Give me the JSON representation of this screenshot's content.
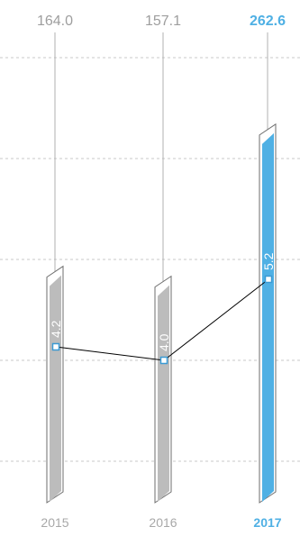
{
  "chart_data": {
    "type": "bar",
    "categories": [
      "2015",
      "2016",
      "2017"
    ],
    "highlight": "2017",
    "series": [
      {
        "values": [
          164.0,
          157.1,
          262.6
        ],
        "labels": [
          "164.0",
          "157.1",
          "262.6"
        ]
      },
      {
        "values": [
          4.2,
          4.0,
          5.2
        ],
        "labels": [
          "4.2",
          "4.0",
          "5.2"
        ]
      }
    ],
    "grid": "dashed horizontal",
    "colors": {
      "bar": "#bcbcbc",
      "bar_highlight": "#4fb0e4",
      "text": "#9e9e9e",
      "text_highlight": "#4fb0e4",
      "grid": "#c8c8c8",
      "line": "#000000"
    }
  }
}
